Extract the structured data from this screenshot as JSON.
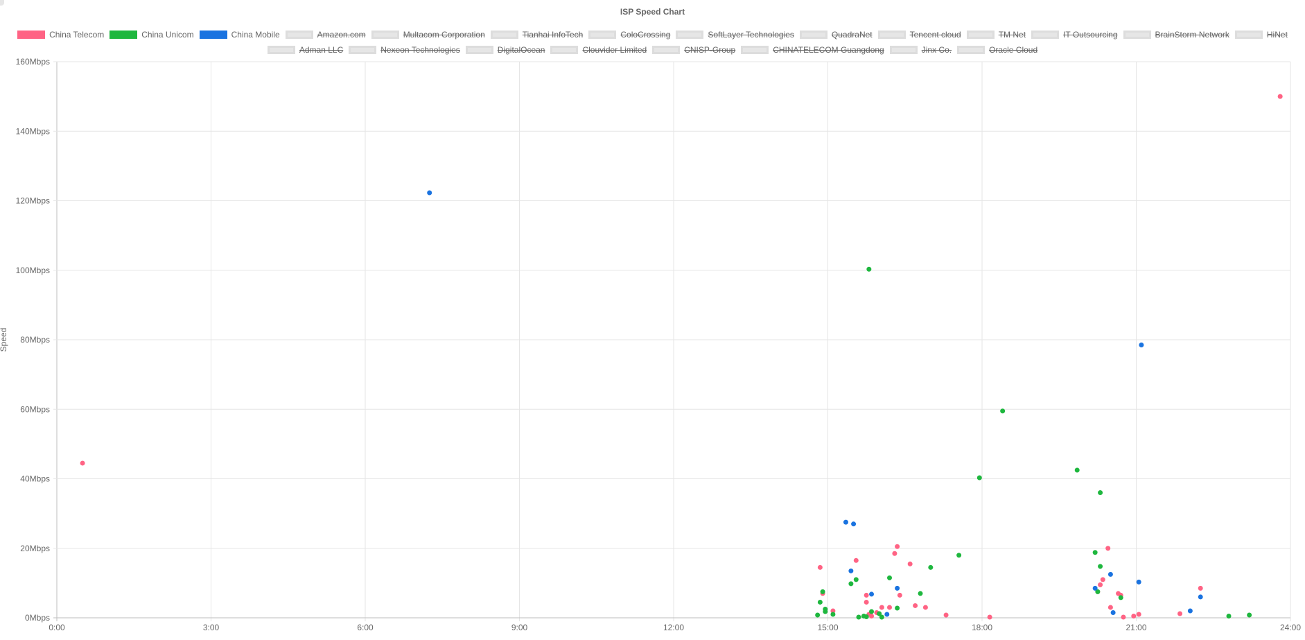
{
  "chart_data": {
    "type": "scatter",
    "title": "ISP Speed Chart",
    "ylabel": "Speed",
    "xlabel": "",
    "xlim": [
      0,
      24
    ],
    "ylim": [
      0,
      160
    ],
    "x_ticks": [
      "0:00",
      "3:00",
      "6:00",
      "9:00",
      "12:00",
      "15:00",
      "18:00",
      "21:00",
      "24:00"
    ],
    "y_ticks": [
      "0Mbps",
      "20Mbps",
      "40Mbps",
      "60Mbps",
      "80Mbps",
      "100Mbps",
      "120Mbps",
      "140Mbps",
      "160Mbps"
    ],
    "grid": true,
    "legend_position": "top",
    "series": [
      {
        "name": "China Telecom",
        "color": "#ff6384",
        "hidden": false,
        "points": [
          [
            0.5,
            44.5
          ],
          [
            23.8,
            150
          ],
          [
            14.85,
            14.5
          ],
          [
            14.9,
            7
          ],
          [
            15.1,
            2
          ],
          [
            15.55,
            16.5
          ],
          [
            15.75,
            6.5
          ],
          [
            15.75,
            4.5
          ],
          [
            15.8,
            1
          ],
          [
            15.85,
            0.5
          ],
          [
            15.95,
            1.5
          ],
          [
            16.05,
            3
          ],
          [
            16.2,
            3
          ],
          [
            16.3,
            18.5
          ],
          [
            16.35,
            20.5
          ],
          [
            16.4,
            6.5
          ],
          [
            16.6,
            15.5
          ],
          [
            16.7,
            3.5
          ],
          [
            16.9,
            3
          ],
          [
            17.3,
            0.8
          ],
          [
            18.15,
            0.2
          ],
          [
            20.25,
            7.5
          ],
          [
            20.3,
            9.5
          ],
          [
            20.35,
            11
          ],
          [
            20.45,
            20
          ],
          [
            20.5,
            3
          ],
          [
            20.65,
            7
          ],
          [
            20.7,
            6.5
          ],
          [
            20.75,
            0.2
          ],
          [
            20.95,
            0.5
          ],
          [
            21.05,
            1
          ],
          [
            21.85,
            1.2
          ],
          [
            22.25,
            8.5
          ]
        ]
      },
      {
        "name": "China Unicom",
        "color": "#1eb73e",
        "hidden": false,
        "points": [
          [
            14.8,
            0.8
          ],
          [
            14.85,
            4.5
          ],
          [
            14.9,
            7.5
          ],
          [
            14.95,
            2.5
          ],
          [
            14.95,
            1.8
          ],
          [
            15.1,
            1
          ],
          [
            15.45,
            9.8
          ],
          [
            15.55,
            11
          ],
          [
            15.6,
            0.2
          ],
          [
            15.7,
            0.5
          ],
          [
            15.75,
            0.3
          ],
          [
            15.8,
            100.3
          ],
          [
            15.85,
            1.8
          ],
          [
            16.0,
            1.2
          ],
          [
            16.05,
            0.2
          ],
          [
            16.2,
            11.5
          ],
          [
            16.35,
            2.8
          ],
          [
            16.8,
            7
          ],
          [
            17.0,
            14.5
          ],
          [
            17.55,
            18
          ],
          [
            17.95,
            40.3
          ],
          [
            18.4,
            59.5
          ],
          [
            19.85,
            42.5
          ],
          [
            20.2,
            18.8
          ],
          [
            20.25,
            7.5
          ],
          [
            20.3,
            14.8
          ],
          [
            20.3,
            36
          ],
          [
            20.7,
            5.8
          ],
          [
            22.8,
            0.5
          ],
          [
            23.2,
            0.8
          ]
        ]
      },
      {
        "name": "China Mobile",
        "color": "#1a73e0",
        "hidden": false,
        "points": [
          [
            7.25,
            122.3
          ],
          [
            15.35,
            27.5
          ],
          [
            15.45,
            13.5
          ],
          [
            15.5,
            27
          ],
          [
            15.85,
            6.8
          ],
          [
            16.15,
            1
          ],
          [
            16.35,
            8.5
          ],
          [
            20.2,
            8.5
          ],
          [
            20.5,
            12.5
          ],
          [
            20.55,
            1.5
          ],
          [
            21.05,
            10.3
          ],
          [
            21.1,
            78.5
          ],
          [
            22.05,
            2
          ],
          [
            22.25,
            6
          ]
        ]
      }
    ],
    "legend_rows": [
      [
        {
          "name": "China Telecom",
          "hidden": false,
          "color": "#ff6384",
          "border": "#ff6384"
        },
        {
          "name": "China Unicom",
          "hidden": false,
          "color": "#1eb73e",
          "border": "#1eb73e"
        },
        {
          "name": "China Mobile",
          "hidden": false,
          "color": "#1a73e0",
          "border": "#1a73e0"
        },
        {
          "name": "Amazon.com",
          "hidden": true,
          "color": "#e6e6e6",
          "border": "#dddddd"
        },
        {
          "name": "Multacom Corporation",
          "hidden": true,
          "color": "#e6e6e6",
          "border": "#dddddd"
        },
        {
          "name": "Tianhai InfoTech",
          "hidden": true,
          "color": "#e6e6e6",
          "border": "#dddddd"
        },
        {
          "name": "ColoCrossing",
          "hidden": true,
          "color": "#e6e6e6",
          "border": "#dddddd"
        },
        {
          "name": "SoftLayer Technologies",
          "hidden": true,
          "color": "#e6e6e6",
          "border": "#dddddd"
        },
        {
          "name": "QuadraNet",
          "hidden": true,
          "color": "#e6e6e6",
          "border": "#dddddd"
        },
        {
          "name": "Tencent cloud",
          "hidden": true,
          "color": "#e6e6e6",
          "border": "#dddddd"
        },
        {
          "name": "TM Net",
          "hidden": true,
          "color": "#e6e6e6",
          "border": "#dddddd"
        },
        {
          "name": "IT Outsourcing",
          "hidden": true,
          "color": "#e6e6e6",
          "border": "#dddddd"
        },
        {
          "name": "BrainStorm Network",
          "hidden": true,
          "color": "#e6e6e6",
          "border": "#dddddd"
        },
        {
          "name": "HiNet",
          "hidden": true,
          "color": "#e6e6e6",
          "border": "#dddddd"
        }
      ],
      [
        {
          "name": "Adman LLC",
          "hidden": true,
          "color": "#e6e6e6",
          "border": "#dddddd"
        },
        {
          "name": "Nexeon Technologies",
          "hidden": true,
          "color": "#e6e6e6",
          "border": "#dddddd"
        },
        {
          "name": "DigitalOcean",
          "hidden": true,
          "color": "#e6e6e6",
          "border": "#dddddd"
        },
        {
          "name": "Clouvider Limited",
          "hidden": true,
          "color": "#e6e6e6",
          "border": "#dddddd"
        },
        {
          "name": "CNISP-Group",
          "hidden": true,
          "color": "#e6e6e6",
          "border": "#dddddd"
        },
        {
          "name": "CHINATELECOM Guangdong",
          "hidden": true,
          "color": "#e6e6e6",
          "border": "#dddddd"
        },
        {
          "name": "Jinx Co.",
          "hidden": true,
          "color": "#e6e6e6",
          "border": "#dddddd"
        },
        {
          "name": "Oracle Cloud",
          "hidden": true,
          "color": "#e6e6e6",
          "border": "#dddddd"
        }
      ]
    ]
  }
}
